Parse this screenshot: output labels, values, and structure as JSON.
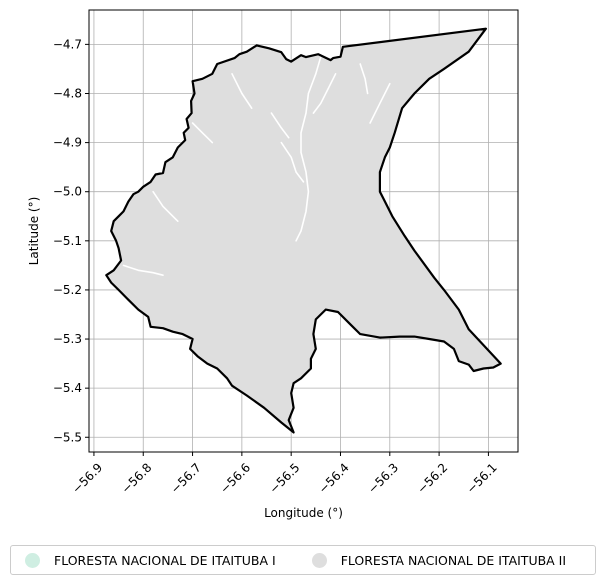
{
  "chart_data": {
    "type": "map",
    "xlabel": "Longitude (°)",
    "ylabel": "Latitude (°)",
    "xlim": [
      -56.91,
      -56.04
    ],
    "ylim": [
      -5.53,
      -4.63
    ],
    "x_ticks": [
      {
        "value": -56.9,
        "label": "−56.9"
      },
      {
        "value": -56.8,
        "label": "−56.8"
      },
      {
        "value": -56.7,
        "label": "−56.7"
      },
      {
        "value": -56.6,
        "label": "−56.6"
      },
      {
        "value": -56.5,
        "label": "−56.5"
      },
      {
        "value": -56.4,
        "label": "−56.4"
      },
      {
        "value": -56.3,
        "label": "−56.3"
      },
      {
        "value": -56.2,
        "label": "−56.2"
      },
      {
        "value": -56.1,
        "label": "−56.1"
      }
    ],
    "y_ticks": [
      {
        "value": -4.7,
        "label": "−4.7"
      },
      {
        "value": -4.8,
        "label": "−4.8"
      },
      {
        "value": -4.9,
        "label": "−4.9"
      },
      {
        "value": -5.0,
        "label": "−5.0"
      },
      {
        "value": -5.1,
        "label": "−5.1"
      },
      {
        "value": -5.2,
        "label": "−5.2"
      },
      {
        "value": -5.3,
        "label": "−5.3"
      },
      {
        "value": -5.4,
        "label": "−5.4"
      },
      {
        "value": -5.5,
        "label": "−5.5"
      }
    ],
    "grid": true,
    "legend_position": "bottom",
    "legend": [
      {
        "name": "FLORESTA NACIONAL DE ITAITUBA I",
        "color": "#cfeee2"
      },
      {
        "name": "FLORESTA NACIONAL DE ITAITUBA II",
        "color": "#dedede"
      }
    ],
    "boundary_color": "#000000",
    "fill_color": "#dedede",
    "boundary": [
      [
        -56.105,
        -4.668
      ],
      [
        -56.395,
        -4.705
      ],
      [
        -56.4,
        -4.725
      ],
      [
        -56.415,
        -4.728
      ],
      [
        -56.42,
        -4.732
      ],
      [
        -56.445,
        -4.72
      ],
      [
        -56.47,
        -4.726
      ],
      [
        -56.48,
        -4.722
      ],
      [
        -56.5,
        -4.735
      ],
      [
        -56.51,
        -4.73
      ],
      [
        -56.52,
        -4.716
      ],
      [
        -56.545,
        -4.708
      ],
      [
        -56.57,
        -4.702
      ],
      [
        -56.59,
        -4.715
      ],
      [
        -56.605,
        -4.72
      ],
      [
        -56.615,
        -4.728
      ],
      [
        -56.65,
        -4.74
      ],
      [
        -56.66,
        -4.76
      ],
      [
        -56.68,
        -4.77
      ],
      [
        -56.7,
        -4.775
      ],
      [
        -56.696,
        -4.8
      ],
      [
        -56.703,
        -4.815
      ],
      [
        -56.702,
        -4.84
      ],
      [
        -56.712,
        -4.852
      ],
      [
        -56.708,
        -4.87
      ],
      [
        -56.718,
        -4.88
      ],
      [
        -56.715,
        -4.895
      ],
      [
        -56.73,
        -4.91
      ],
      [
        -56.74,
        -4.93
      ],
      [
        -56.755,
        -4.94
      ],
      [
        -56.76,
        -4.962
      ],
      [
        -56.775,
        -4.965
      ],
      [
        -56.785,
        -4.98
      ],
      [
        -56.8,
        -4.99
      ],
      [
        -56.81,
        -5.0
      ],
      [
        -56.82,
        -5.005
      ],
      [
        -56.83,
        -5.02
      ],
      [
        -56.84,
        -5.04
      ],
      [
        -56.85,
        -5.05
      ],
      [
        -56.86,
        -5.06
      ],
      [
        -56.865,
        -5.08
      ],
      [
        -56.855,
        -5.1
      ],
      [
        -56.85,
        -5.115
      ],
      [
        -56.845,
        -5.14
      ],
      [
        -56.86,
        -5.16
      ],
      [
        -56.875,
        -5.17
      ],
      [
        -56.865,
        -5.185
      ],
      [
        -56.85,
        -5.2
      ],
      [
        -56.83,
        -5.22
      ],
      [
        -56.81,
        -5.24
      ],
      [
        -56.79,
        -5.255
      ],
      [
        -56.785,
        -5.275
      ],
      [
        -56.76,
        -5.278
      ],
      [
        -56.74,
        -5.285
      ],
      [
        -56.72,
        -5.29
      ],
      [
        -56.7,
        -5.3
      ],
      [
        -56.705,
        -5.32
      ],
      [
        -56.69,
        -5.335
      ],
      [
        -56.67,
        -5.35
      ],
      [
        -56.65,
        -5.36
      ],
      [
        -56.63,
        -5.38
      ],
      [
        -56.62,
        -5.395
      ],
      [
        -56.59,
        -5.415
      ],
      [
        -56.555,
        -5.44
      ],
      [
        -56.52,
        -5.47
      ],
      [
        -56.495,
        -5.49
      ],
      [
        -56.505,
        -5.465
      ],
      [
        -56.495,
        -5.44
      ],
      [
        -56.5,
        -5.41
      ],
      [
        -56.495,
        -5.39
      ],
      [
        -56.48,
        -5.38
      ],
      [
        -56.46,
        -5.36
      ],
      [
        -56.46,
        -5.34
      ],
      [
        -56.45,
        -5.32
      ],
      [
        -56.455,
        -5.29
      ],
      [
        -56.45,
        -5.26
      ],
      [
        -56.43,
        -5.24
      ],
      [
        -56.405,
        -5.245
      ],
      [
        -56.38,
        -5.27
      ],
      [
        -56.36,
        -5.29
      ],
      [
        -56.32,
        -5.297
      ],
      [
        -56.28,
        -5.295
      ],
      [
        -56.25,
        -5.295
      ],
      [
        -56.22,
        -5.3
      ],
      [
        -56.19,
        -5.305
      ],
      [
        -56.17,
        -5.32
      ],
      [
        -56.16,
        -5.345
      ],
      [
        -56.14,
        -5.352
      ],
      [
        -56.13,
        -5.365
      ],
      [
        -56.11,
        -5.36
      ],
      [
        -56.09,
        -5.358
      ],
      [
        -56.075,
        -5.35
      ],
      [
        -56.14,
        -5.28
      ],
      [
        -56.16,
        -5.24
      ],
      [
        -56.19,
        -5.2
      ],
      [
        -56.21,
        -5.175
      ],
      [
        -56.25,
        -5.12
      ],
      [
        -56.27,
        -5.09
      ],
      [
        -56.295,
        -5.05
      ],
      [
        -56.31,
        -5.02
      ],
      [
        -56.32,
        -5.0
      ],
      [
        -56.32,
        -4.96
      ],
      [
        -56.31,
        -4.93
      ],
      [
        -56.3,
        -4.91
      ],
      [
        -56.29,
        -4.88
      ],
      [
        -56.275,
        -4.83
      ],
      [
        -56.25,
        -4.8
      ],
      [
        -56.22,
        -4.77
      ],
      [
        -56.19,
        -4.75
      ],
      [
        -56.14,
        -4.715
      ],
      [
        -56.105,
        -4.668
      ]
    ],
    "rivers": [
      [
        [
          -56.44,
          -4.725
        ],
        [
          -56.45,
          -4.76
        ],
        [
          -56.465,
          -4.8
        ],
        [
          -56.47,
          -4.84
        ],
        [
          -56.48,
          -4.88
        ],
        [
          -56.48,
          -4.92
        ],
        [
          -56.47,
          -4.96
        ],
        [
          -56.465,
          -5.0
        ],
        [
          -56.47,
          -5.04
        ],
        [
          -56.48,
          -5.08
        ],
        [
          -56.49,
          -5.1
        ]
      ],
      [
        [
          -56.52,
          -4.9
        ],
        [
          -56.5,
          -4.93
        ],
        [
          -56.49,
          -4.96
        ],
        [
          -56.475,
          -4.98
        ]
      ],
      [
        [
          -56.54,
          -4.84
        ],
        [
          -56.52,
          -4.87
        ],
        [
          -56.505,
          -4.89
        ]
      ],
      [
        [
          -56.41,
          -4.76
        ],
        [
          -56.425,
          -4.79
        ],
        [
          -56.44,
          -4.82
        ],
        [
          -56.455,
          -4.84
        ]
      ],
      [
        [
          -56.62,
          -4.76
        ],
        [
          -56.6,
          -4.8
        ],
        [
          -56.58,
          -4.83
        ]
      ],
      [
        [
          -56.7,
          -4.86
        ],
        [
          -56.68,
          -4.88
        ],
        [
          -56.66,
          -4.9
        ]
      ],
      [
        [
          -56.78,
          -5.0
        ],
        [
          -56.76,
          -5.03
        ],
        [
          -56.73,
          -5.06
        ]
      ],
      [
        [
          -56.84,
          -5.15
        ],
        [
          -56.81,
          -5.16
        ],
        [
          -56.78,
          -5.165
        ],
        [
          -56.76,
          -5.17
        ]
      ],
      [
        [
          -56.3,
          -4.78
        ],
        [
          -56.32,
          -4.82
        ],
        [
          -56.34,
          -4.86
        ]
      ],
      [
        [
          -56.36,
          -4.74
        ],
        [
          -56.35,
          -4.77
        ],
        [
          -56.345,
          -4.8
        ]
      ]
    ]
  }
}
